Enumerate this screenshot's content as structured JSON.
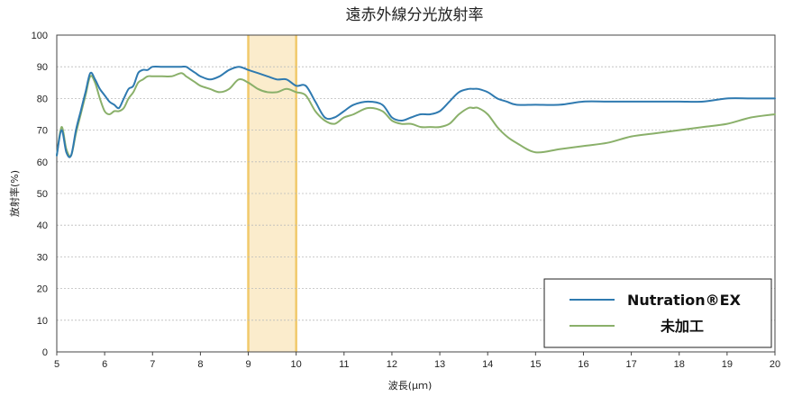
{
  "chart_data": {
    "type": "line",
    "title": "遠赤外線分光放射率",
    "xlabel": "波長(μｍ)",
    "ylabel": "放射率(%)",
    "xlim": [
      5,
      20
    ],
    "ylim": [
      0,
      100
    ],
    "xticks": [
      "5",
      "6",
      "7",
      "8",
      "9",
      "10",
      "11",
      "12",
      "13",
      "14",
      "15",
      "16",
      "17",
      "18",
      "19",
      "20"
    ],
    "yticks": [
      "0",
      "10",
      "20",
      "30",
      "40",
      "50",
      "60",
      "70",
      "80",
      "90",
      "100"
    ],
    "grid": "horizontal",
    "legend_position": "bottom-right",
    "highlight_band": {
      "x": [
        9,
        10
      ],
      "color": "#fbeccc",
      "edge_color": "#f1c96b"
    },
    "series": [
      {
        "name": "Nutration®EX",
        "color": "#2f7ab0",
        "x": [
          5.0,
          5.1,
          5.2,
          5.3,
          5.4,
          5.5,
          5.6,
          5.7,
          5.8,
          5.9,
          6.0,
          6.1,
          6.2,
          6.3,
          6.4,
          6.5,
          6.6,
          6.7,
          6.8,
          6.9,
          7.0,
          7.2,
          7.4,
          7.6,
          7.7,
          7.8,
          7.9,
          8.0,
          8.2,
          8.4,
          8.6,
          8.8,
          9.0,
          9.2,
          9.4,
          9.6,
          9.8,
          10.0,
          10.2,
          10.4,
          10.6,
          10.8,
          11.0,
          11.2,
          11.5,
          11.8,
          12.0,
          12.2,
          12.4,
          12.6,
          12.8,
          13.0,
          13.2,
          13.4,
          13.6,
          13.7,
          13.8,
          14.0,
          14.2,
          14.4,
          14.6,
          15.0,
          15.5,
          16.0,
          16.5,
          17.0,
          17.5,
          18.0,
          18.5,
          19.0,
          19.5,
          20.0
        ],
        "values": [
          62,
          70,
          63,
          62,
          70,
          76,
          82,
          88,
          86,
          83,
          81,
          79,
          78,
          77,
          80,
          83,
          84,
          88,
          89,
          89,
          90,
          90,
          90,
          90,
          90,
          89,
          88,
          87,
          86,
          87,
          89,
          90,
          89,
          88,
          87,
          86,
          86,
          84,
          84,
          79,
          74,
          74,
          76,
          78,
          79,
          78,
          74,
          73,
          74,
          75,
          75,
          76,
          79,
          82,
          83,
          83,
          83,
          82,
          80,
          79,
          78,
          78,
          78,
          79,
          79,
          79,
          79,
          79,
          79,
          80,
          80,
          80
        ]
      },
      {
        "name": "未加工",
        "color": "#8ab06a",
        "x": [
          5.0,
          5.1,
          5.2,
          5.3,
          5.4,
          5.5,
          5.6,
          5.7,
          5.8,
          5.9,
          6.0,
          6.1,
          6.2,
          6.3,
          6.4,
          6.5,
          6.6,
          6.7,
          6.8,
          6.9,
          7.0,
          7.2,
          7.4,
          7.6,
          7.7,
          7.8,
          7.9,
          8.0,
          8.2,
          8.4,
          8.6,
          8.8,
          9.0,
          9.2,
          9.4,
          9.6,
          9.8,
          10.0,
          10.2,
          10.4,
          10.6,
          10.8,
          11.0,
          11.2,
          11.5,
          11.8,
          12.0,
          12.2,
          12.4,
          12.6,
          12.8,
          13.0,
          13.2,
          13.4,
          13.6,
          13.7,
          13.8,
          14.0,
          14.2,
          14.4,
          14.6,
          15.0,
          15.5,
          16.0,
          16.5,
          17.0,
          17.5,
          18.0,
          18.5,
          19.0,
          19.5,
          20.0
        ],
        "values": [
          62,
          71,
          64,
          62,
          69,
          75,
          81,
          87,
          85,
          80,
          76,
          75,
          76,
          76,
          77,
          80,
          82,
          85,
          86,
          87,
          87,
          87,
          87,
          88,
          87,
          86,
          85,
          84,
          83,
          82,
          83,
          86,
          85,
          83,
          82,
          82,
          83,
          82,
          81,
          76,
          73,
          72,
          74,
          75,
          77,
          76,
          73,
          72,
          72,
          71,
          71,
          71,
          72,
          75,
          77,
          77,
          77,
          75,
          71,
          68,
          66,
          63,
          64,
          65,
          66,
          68,
          69,
          70,
          71,
          72,
          74,
          75
        ]
      }
    ]
  }
}
